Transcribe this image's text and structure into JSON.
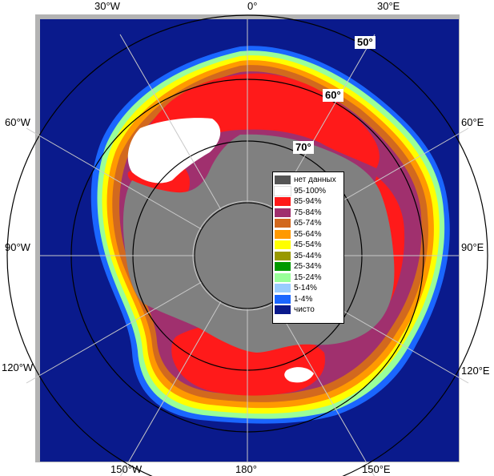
{
  "map": {
    "colors": {
      "ocean": "#0a1a8c",
      "land": "#808080",
      "frame": "#b3b3b3",
      "grid": "#c0c0c0",
      "ice_95_100": "#ffffff",
      "ice_85_94": "#ff1a1a",
      "ice_75_84": "#a0306e",
      "ice_65_74": "#d2691e",
      "ice_55_64": "#ff9900",
      "ice_45_54": "#ffff00",
      "ice_35_44": "#999900",
      "ice_25_34": "#009900",
      "ice_15_24": "#99ff99",
      "ice_5_14": "#99ccff",
      "ice_1_4": "#1a66ff"
    },
    "longitude_labels": {
      "top_30w": "30°W",
      "top_0": "0°",
      "top_30e": "30°E",
      "left_60w": "60°W",
      "right_60e": "60°E",
      "left_90w": "90°W",
      "right_90e": "90°E",
      "left_120w": "120°W",
      "right_120e": "120°E",
      "bottom_150w": "150°W",
      "bottom_180": "180°",
      "bottom_150e": "150°E"
    },
    "latitude_labels": {
      "lat_50": "50°",
      "lat_60": "60°",
      "lat_70": "70°"
    }
  },
  "legend": {
    "items": [
      {
        "label": "нет данных",
        "color": "#555555"
      },
      {
        "label": "95-100%",
        "color": "#ffffff"
      },
      {
        "label": "85-94%",
        "color": "#ff1a1a"
      },
      {
        "label": "75-84%",
        "color": "#a0306e"
      },
      {
        "label": "65-74%",
        "color": "#d2691e"
      },
      {
        "label": "55-64%",
        "color": "#ff9900"
      },
      {
        "label": "45-54%",
        "color": "#ffff00"
      },
      {
        "label": "35-44%",
        "color": "#999900"
      },
      {
        "label": "25-34%",
        "color": "#009900"
      },
      {
        "label": "15-24%",
        "color": "#99ff99"
      },
      {
        "label": "5-14%",
        "color": "#99ccff"
      },
      {
        "label": "1-4%",
        "color": "#1a66ff"
      },
      {
        "label": "чисто",
        "color": "#0a1a8c"
      }
    ]
  }
}
